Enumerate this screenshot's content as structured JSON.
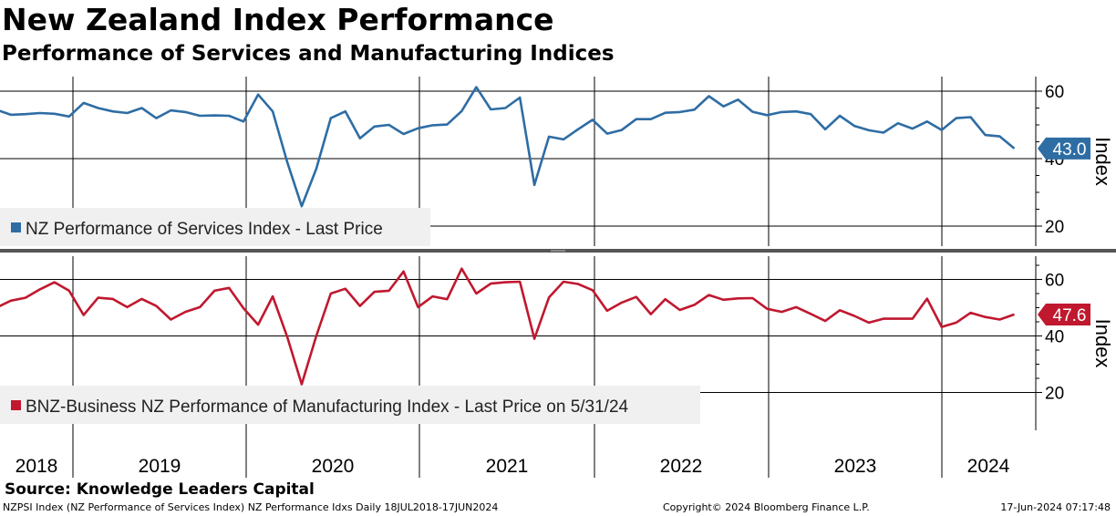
{
  "header": {
    "title": "New Zealand Index Performance",
    "subtitle": "Performance of Services and Manufacturing Indices"
  },
  "footer": {
    "source": "Source: Knowledge Leaders Capital",
    "left": "NZPSI Index (NZ Performance of Services Index) NZ Performance Idxs  Daily 18JUL2018-17JUN2024",
    "center": "Copyright© 2024 Bloomberg Finance L.P.",
    "right": "17-Jun-2024 07:17:48"
  },
  "colors": {
    "services": "#2e6da4",
    "manufacturing": "#c0182f",
    "grid": "#000000",
    "legend_bg": "#f0f0f0",
    "divider": "#555555"
  },
  "chart_data": [
    {
      "type": "line",
      "panel": "top",
      "series": [
        {
          "name": "NZ Performance of Services Index - Last Price",
          "start_month": "2018-07",
          "values": [
            54.5,
            53.0,
            53.2,
            53.5,
            53.3,
            52.5,
            56.5,
            55.0,
            54.0,
            53.5,
            55.0,
            52.0,
            54.3,
            53.8,
            52.7,
            52.8,
            52.7,
            51.0,
            59.0,
            54.0,
            39.0,
            25.9,
            37.0,
            52.0,
            54.0,
            46.0,
            49.5,
            50.0,
            47.3,
            49.0,
            49.9,
            50.1,
            54.1,
            61.2,
            54.6,
            55.0,
            58.1,
            32.2,
            46.5,
            45.7,
            48.7,
            51.5,
            47.4,
            48.5,
            51.7,
            51.7,
            53.6,
            53.8,
            54.5,
            58.5,
            55.5,
            57.5,
            53.9,
            52.9,
            53.8,
            54.0,
            53.2,
            48.7,
            52.7,
            49.7,
            48.4,
            47.7,
            50.5,
            48.9,
            51.0,
            48.5,
            52.0,
            52.3,
            47.0,
            46.6,
            43.0
          ]
        }
      ],
      "last_value_label": "43.0",
      "ylabel": "Index",
      "yticks": [
        20,
        40,
        60
      ],
      "ytick_labels": [
        "20",
        "40",
        "60"
      ],
      "ylim": [
        16,
        65
      ],
      "grid": true,
      "legend": "NZ Performance of Services Index - Last Price",
      "legend_position": "bottom-left"
    },
    {
      "type": "line",
      "panel": "bottom",
      "series": [
        {
          "name": "BNZ-Business NZ Performance of Manufacturing Index - Last Price on 5/31/24",
          "start_month": "2018-07",
          "values": [
            50.0,
            52.5,
            53.5,
            56.5,
            59.0,
            56.0,
            47.4,
            53.5,
            53.1,
            50.2,
            53.1,
            50.6,
            45.8,
            48.5,
            50.2,
            56.0,
            57.0,
            49.8,
            44.0,
            54.0,
            39.7,
            22.9,
            40.0,
            55.0,
            56.7,
            50.6,
            55.6,
            56.0,
            62.8,
            50.2,
            54.0,
            53.0,
            63.8,
            55.0,
            58.5,
            59.0,
            59.2,
            39.0,
            53.6,
            59.2,
            58.4,
            56.2,
            48.9,
            51.8,
            53.8,
            47.7,
            53.0,
            49.2,
            51.0,
            54.5,
            52.8,
            53.3,
            53.4,
            49.6,
            48.5,
            50.2,
            47.8,
            45.3,
            49.1,
            47.1,
            44.7,
            46.1,
            46.1,
            46.1,
            53.2,
            43.2,
            44.7,
            48.2,
            46.7,
            45.8,
            47.6
          ]
        }
      ],
      "last_value_label": "47.6",
      "ylabel": "Index",
      "yticks": [
        20,
        40,
        60
      ],
      "ytick_labels": [
        "20",
        "40",
        "60"
      ],
      "ylim": [
        8,
        67
      ],
      "grid": true,
      "legend": "BNZ-Business NZ Performance of Manufacturing Index - Last Price on 5/31/24",
      "legend_position": "bottom-left"
    }
  ],
  "x_axis": {
    "year_labels": [
      "2018",
      "2019",
      "2020",
      "2021",
      "2022",
      "2023",
      "2024"
    ],
    "year_boundaries": [
      "2019-01",
      "2020-01",
      "2021-01",
      "2022-01",
      "2023-01",
      "2024-01"
    ]
  }
}
